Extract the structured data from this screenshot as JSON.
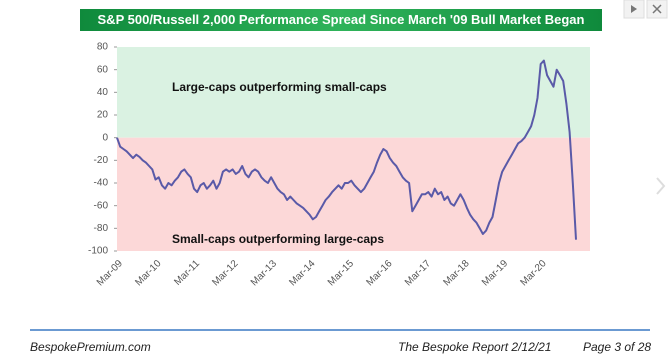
{
  "chart_data": {
    "type": "line",
    "title": "S&P 500/Russell 2,000 Performance Spread Since March '09 Bull Market Began",
    "annotations": [
      "Large-caps outperforming small-caps",
      "Small-caps outperforming large-caps"
    ],
    "categories": [
      "Mar-09",
      null,
      null,
      null,
      null,
      null,
      null,
      null,
      null,
      null,
      null,
      null,
      "Mar-10",
      null,
      null,
      null,
      null,
      null,
      null,
      null,
      null,
      null,
      null,
      null,
      "Mar-11",
      null,
      null,
      null,
      null,
      null,
      null,
      null,
      null,
      null,
      null,
      null,
      "Mar-12",
      null,
      null,
      null,
      null,
      null,
      null,
      null,
      null,
      null,
      null,
      null,
      "Mar-13",
      null,
      null,
      null,
      null,
      null,
      null,
      null,
      null,
      null,
      null,
      null,
      "Mar-14",
      null,
      null,
      null,
      null,
      null,
      null,
      null,
      null,
      null,
      null,
      null,
      "Mar-15",
      null,
      null,
      null,
      null,
      null,
      null,
      null,
      null,
      null,
      null,
      null,
      "Mar-16",
      null,
      null,
      null,
      null,
      null,
      null,
      null,
      null,
      null,
      null,
      null,
      "Mar-17",
      null,
      null,
      null,
      null,
      null,
      null,
      null,
      null,
      null,
      null,
      null,
      "Mar-18",
      null,
      null,
      null,
      null,
      null,
      null,
      null,
      null,
      null,
      null,
      null,
      "Mar-19",
      null,
      null,
      null,
      null,
      null,
      null,
      null,
      null,
      null,
      null,
      null,
      "Mar-20",
      null,
      null,
      null,
      null,
      null,
      null,
      null,
      null,
      null,
      null,
      null
    ],
    "series": [
      {
        "color": "#5a5aa8",
        "values": [
          0,
          -8,
          -10,
          -12,
          -15,
          -18,
          -15,
          -17,
          -20,
          -22,
          -25,
          -28,
          -37,
          -35,
          -42,
          -45,
          -40,
          -42,
          -38,
          -35,
          -30,
          -28,
          -32,
          -35,
          -45,
          -48,
          -42,
          -40,
          -45,
          -42,
          -38,
          -45,
          -40,
          -30,
          -28,
          -30,
          -28,
          -32,
          -30,
          -25,
          -32,
          -35,
          -30,
          -28,
          -30,
          -35,
          -38,
          -40,
          -35,
          -40,
          -45,
          -48,
          -50,
          -55,
          -52,
          -55,
          -58,
          -60,
          -62,
          -65,
          -68,
          -72,
          -70,
          -65,
          -60,
          -55,
          -52,
          -48,
          -45,
          -42,
          -45,
          -40,
          -40,
          -38,
          -42,
          -45,
          -48,
          -45,
          -40,
          -35,
          -30,
          -22,
          -15,
          -10,
          -12,
          -18,
          -22,
          -25,
          -30,
          -35,
          -38,
          -40,
          -65,
          -60,
          -55,
          -50,
          -50,
          -48,
          -52,
          -45,
          -50,
          -48,
          -55,
          -52,
          -58,
          -60,
          -55,
          -50,
          -55,
          -62,
          -68,
          -72,
          -75,
          -80,
          -85,
          -82,
          -75,
          -70,
          -55,
          -40,
          -30,
          -25,
          -20,
          -15,
          -10,
          -5,
          -3,
          0,
          5,
          10,
          20,
          35,
          65,
          68,
          55,
          50,
          45,
          60,
          55,
          50,
          30,
          5,
          -40,
          -90
        ]
      }
    ],
    "ylim": [
      -100,
      80
    ],
    "yticks": [
      -100,
      -80,
      -60,
      -40,
      -20,
      0,
      20,
      40,
      60,
      80
    ]
  },
  "footer": {
    "site": "BespokePremium.com",
    "report": "The Bespoke Report 2/12/21",
    "page": "Page 3 of 28"
  }
}
